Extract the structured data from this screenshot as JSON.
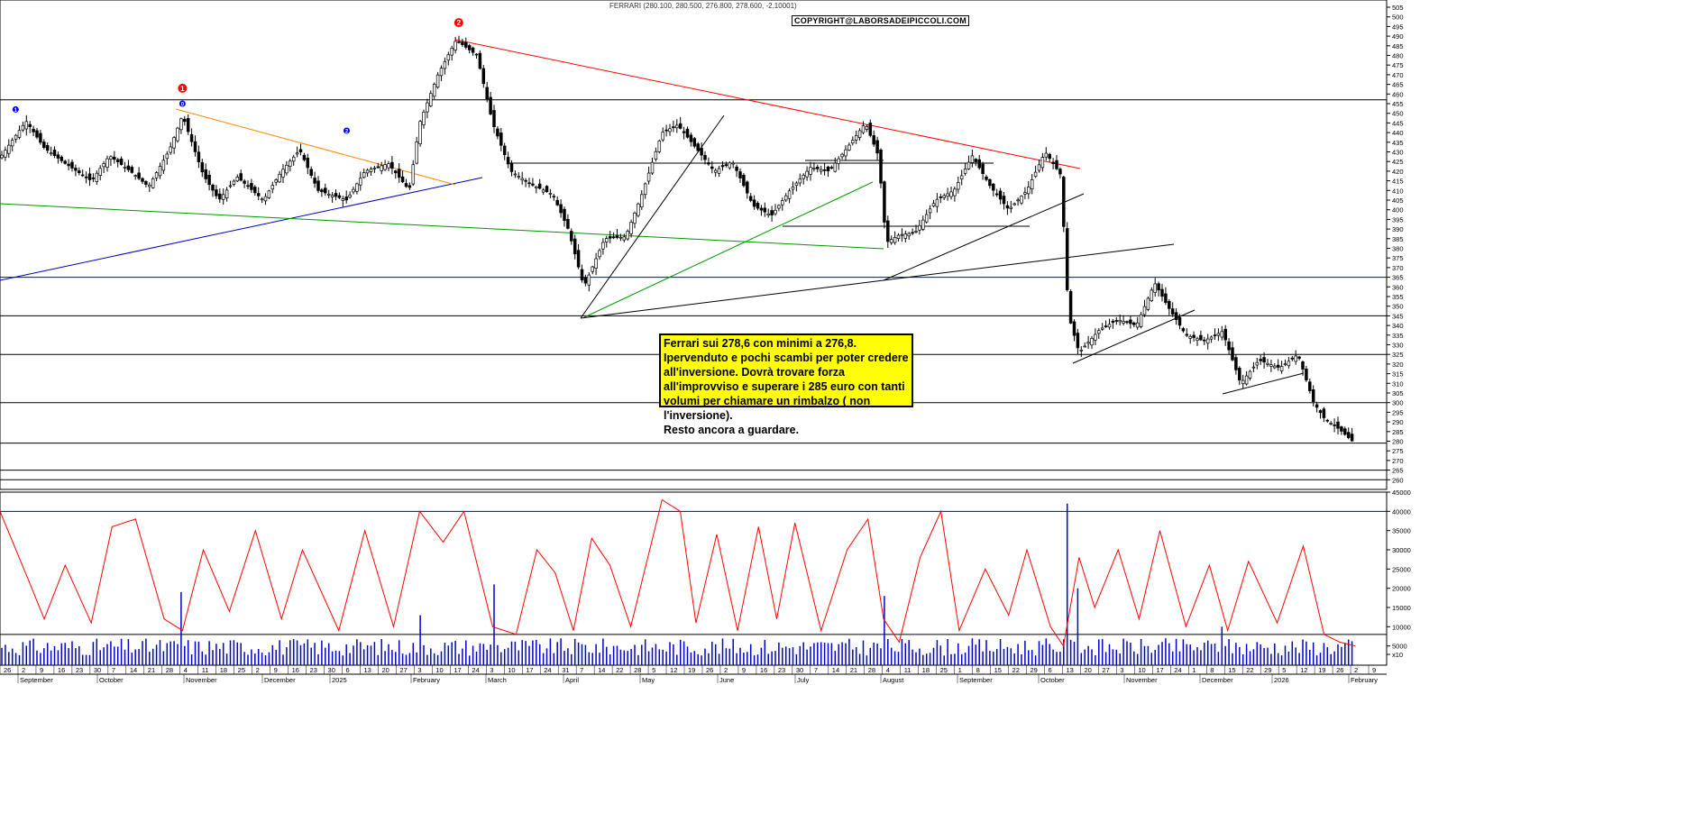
{
  "chart_data": {
    "type": "candlestick",
    "title": "FERRARI (280.100, 280.500, 276.800, 278.600, -2.10001)",
    "copyright": "COPYRIGHT@LABORSADEIPICCOLI.COM",
    "annotation": "Ferrari sui 278,6 con minimi a 276,8.\nIpervenduto e pochi scambi per poter credere all'inversione. Dovrà trovare forza all'improvviso e superare i 285 euro con tanti volumi per chiamare un rimbalzo ( non l'inversione).\nResto ancora a guardare.",
    "price_axis": {
      "ylim": [
        255,
        505
      ],
      "ticks": [
        260,
        265,
        270,
        275,
        280,
        285,
        290,
        295,
        300,
        305,
        310,
        315,
        320,
        325,
        330,
        335,
        340,
        345,
        350,
        355,
        360,
        365,
        370,
        375,
        380,
        385,
        390,
        395,
        400,
        405,
        410,
        415,
        420,
        425,
        430,
        435,
        440,
        445,
        450,
        455,
        460,
        465,
        470,
        475,
        480,
        485,
        490,
        495,
        500,
        505
      ]
    },
    "volume_axis": {
      "ylim": [
        0,
        45000
      ],
      "ticks": [
        "45000",
        "40000",
        "35000",
        "30000",
        "25000",
        "20000",
        "15000",
        "10000",
        "5000",
        "x10"
      ]
    },
    "x_axis": {
      "months": [
        "September",
        "October",
        "November",
        "December",
        "2025",
        "February",
        "March",
        "April",
        "May",
        "June",
        "July",
        "August",
        "September",
        "October",
        "November",
        "December",
        "2026",
        "February"
      ],
      "day_ticks": [
        "26",
        "2",
        "9",
        "16",
        "23",
        "30",
        "7",
        "14",
        "21",
        "28",
        "4",
        "11",
        "18",
        "25",
        "2",
        "9",
        "16",
        "23",
        "30",
        "6",
        "13",
        "20",
        "27",
        "3",
        "10",
        "17",
        "24",
        "3",
        "10",
        "17",
        "24",
        "31",
        "7",
        "14",
        "22",
        "28",
        "5",
        "12",
        "19",
        "26",
        "2",
        "9",
        "16",
        "23",
        "30",
        "7",
        "14",
        "21",
        "28",
        "4",
        "11",
        "18",
        "25",
        "1",
        "8",
        "15",
        "22",
        "29",
        "6",
        "13",
        "20",
        "27",
        "3",
        "10",
        "17",
        "24",
        "1",
        "8",
        "15",
        "22",
        "29",
        "5",
        "12",
        "19",
        "26",
        "2",
        "9"
      ]
    },
    "price_points": [
      [
        "2024-08-26",
        427
      ],
      [
        "2024-09-05",
        446
      ],
      [
        "2024-09-12",
        432
      ],
      [
        "2024-09-20",
        424
      ],
      [
        "2024-09-30",
        415
      ],
      [
        "2024-10-07",
        428
      ],
      [
        "2024-10-15",
        420
      ],
      [
        "2024-10-22",
        412
      ],
      [
        "2024-10-30",
        431
      ],
      [
        "2024-11-04",
        449
      ],
      [
        "2024-11-12",
        418
      ],
      [
        "2024-11-18",
        405
      ],
      [
        "2024-11-25",
        417
      ],
      [
        "2024-12-05",
        405
      ],
      [
        "2024-12-12",
        420
      ],
      [
        "2024-12-19",
        431
      ],
      [
        "2024-12-26",
        410
      ],
      [
        "2025-01-06",
        405
      ],
      [
        "2025-01-13",
        420
      ],
      [
        "2025-01-22",
        424
      ],
      [
        "2025-01-30",
        410
      ],
      [
        "2025-02-03",
        445
      ],
      [
        "2025-02-10",
        470
      ],
      [
        "2025-02-17",
        488
      ],
      [
        "2025-02-25",
        480
      ],
      [
        "2025-03-03",
        445
      ],
      [
        "2025-03-10",
        420
      ],
      [
        "2025-03-18",
        413
      ],
      [
        "2025-03-26",
        408
      ],
      [
        "2025-04-01",
        390
      ],
      [
        "2025-04-07",
        360
      ],
      [
        "2025-04-15",
        385
      ],
      [
        "2025-04-23",
        386
      ],
      [
        "2025-04-29",
        407
      ],
      [
        "2025-05-07",
        440
      ],
      [
        "2025-05-13",
        444
      ],
      [
        "2025-05-20",
        432
      ],
      [
        "2025-05-27",
        420
      ],
      [
        "2025-06-03",
        425
      ],
      [
        "2025-06-11",
        402
      ],
      [
        "2025-06-18",
        397
      ],
      [
        "2025-06-25",
        410
      ],
      [
        "2025-07-03",
        422
      ],
      [
        "2025-07-10",
        420
      ],
      [
        "2025-07-17",
        432
      ],
      [
        "2025-07-24",
        445
      ],
      [
        "2025-07-29",
        428
      ],
      [
        "2025-08-01",
        383
      ],
      [
        "2025-08-06",
        387
      ],
      [
        "2025-08-12",
        388
      ],
      [
        "2025-08-20",
        405
      ],
      [
        "2025-08-27",
        410
      ],
      [
        "2025-09-03",
        428
      ],
      [
        "2025-09-10",
        412
      ],
      [
        "2025-09-17",
        400
      ],
      [
        "2025-09-24",
        410
      ],
      [
        "2025-10-01",
        430
      ],
      [
        "2025-10-07",
        418
      ],
      [
        "2025-10-10",
        345
      ],
      [
        "2025-10-14",
        326
      ],
      [
        "2025-10-22",
        338
      ],
      [
        "2025-10-29",
        343
      ],
      [
        "2025-11-05",
        340
      ],
      [
        "2025-11-12",
        362
      ],
      [
        "2025-11-17",
        350
      ],
      [
        "2025-11-24",
        335
      ],
      [
        "2025-12-01",
        332
      ],
      [
        "2025-12-08",
        337
      ],
      [
        "2025-12-15",
        310
      ],
      [
        "2025-12-22",
        322
      ],
      [
        "2025-12-30",
        318
      ],
      [
        "2026-01-06",
        325
      ],
      [
        "2026-01-12",
        300
      ],
      [
        "2026-01-16",
        292
      ],
      [
        "2026-01-22",
        286
      ],
      [
        "2026-01-28",
        278.6
      ]
    ],
    "oscillator_points": [
      [
        "2024-08-26",
        40000
      ],
      [
        "2024-09-06",
        22000
      ],
      [
        "2024-09-12",
        12000
      ],
      [
        "2024-09-20",
        26000
      ],
      [
        "2024-09-30",
        11000
      ],
      [
        "2024-10-08",
        36000
      ],
      [
        "2024-10-17",
        38000
      ],
      [
        "2024-10-28",
        12000
      ],
      [
        "2024-11-04",
        9000
      ],
      [
        "2024-11-12",
        30000
      ],
      [
        "2024-11-22",
        14000
      ],
      [
        "2024-12-02",
        35000
      ],
      [
        "2024-12-12",
        12000
      ],
      [
        "2024-12-20",
        30000
      ],
      [
        "2025-01-03",
        9000
      ],
      [
        "2025-01-13",
        35000
      ],
      [
        "2025-01-24",
        10000
      ],
      [
        "2025-02-03",
        40000
      ],
      [
        "2025-02-12",
        32000
      ],
      [
        "2025-02-20",
        40000
      ],
      [
        "2025-03-03",
        10000
      ],
      [
        "2025-03-12",
        8000
      ],
      [
        "2025-03-20",
        30000
      ],
      [
        "2025-03-27",
        24000
      ],
      [
        "2025-04-03",
        9000
      ],
      [
        "2025-04-10",
        33000
      ],
      [
        "2025-04-17",
        26000
      ],
      [
        "2025-04-25",
        10000
      ],
      [
        "2025-05-07",
        43000
      ],
      [
        "2025-05-14",
        40000
      ],
      [
        "2025-05-20",
        11000
      ],
      [
        "2025-05-28",
        34000
      ],
      [
        "2025-06-05",
        9000
      ],
      [
        "2025-06-13",
        36000
      ],
      [
        "2025-06-20",
        12000
      ],
      [
        "2025-06-27",
        37000
      ],
      [
        "2025-07-07",
        9000
      ],
      [
        "2025-07-17",
        30000
      ],
      [
        "2025-07-25",
        38000
      ],
      [
        "2025-07-31",
        12000
      ],
      [
        "2025-08-06",
        6000
      ],
      [
        "2025-08-14",
        28000
      ],
      [
        "2025-08-22",
        40000
      ],
      [
        "2025-08-29",
        9000
      ],
      [
        "2025-09-08",
        25000
      ],
      [
        "2025-09-17",
        13000
      ],
      [
        "2025-09-24",
        30000
      ],
      [
        "2025-10-03",
        10000
      ],
      [
        "2025-10-08",
        5000
      ],
      [
        "2025-10-14",
        28000
      ],
      [
        "2025-10-20",
        15000
      ],
      [
        "2025-10-29",
        30000
      ],
      [
        "2025-11-06",
        12000
      ],
      [
        "2025-11-14",
        35000
      ],
      [
        "2025-11-24",
        10000
      ],
      [
        "2025-12-03",
        26000
      ],
      [
        "2025-12-10",
        9000
      ],
      [
        "2025-12-18",
        27000
      ],
      [
        "2025-12-29",
        11000
      ],
      [
        "2026-01-08",
        31000
      ],
      [
        "2026-01-16",
        8000
      ],
      [
        "2026-01-22",
        6000
      ],
      [
        "2026-01-28",
        5000
      ]
    ],
    "horizontal_levels": [
      457,
      365,
      345,
      325,
      300,
      279,
      265,
      260
    ],
    "markers": [
      {
        "label": "1",
        "color": "red",
        "date": "2024-11-04",
        "value": 463
      },
      {
        "label": "2",
        "color": "red",
        "date": "2025-02-18",
        "value": 497
      },
      {
        "label": "1",
        "color": "blue",
        "date": "2024-09-01",
        "value": 452
      },
      {
        "label": "0",
        "color": "blue",
        "date": "2024-11-04",
        "value": 455
      },
      {
        "label": "2",
        "color": "blue",
        "date": "2025-01-06",
        "value": 441
      }
    ]
  }
}
